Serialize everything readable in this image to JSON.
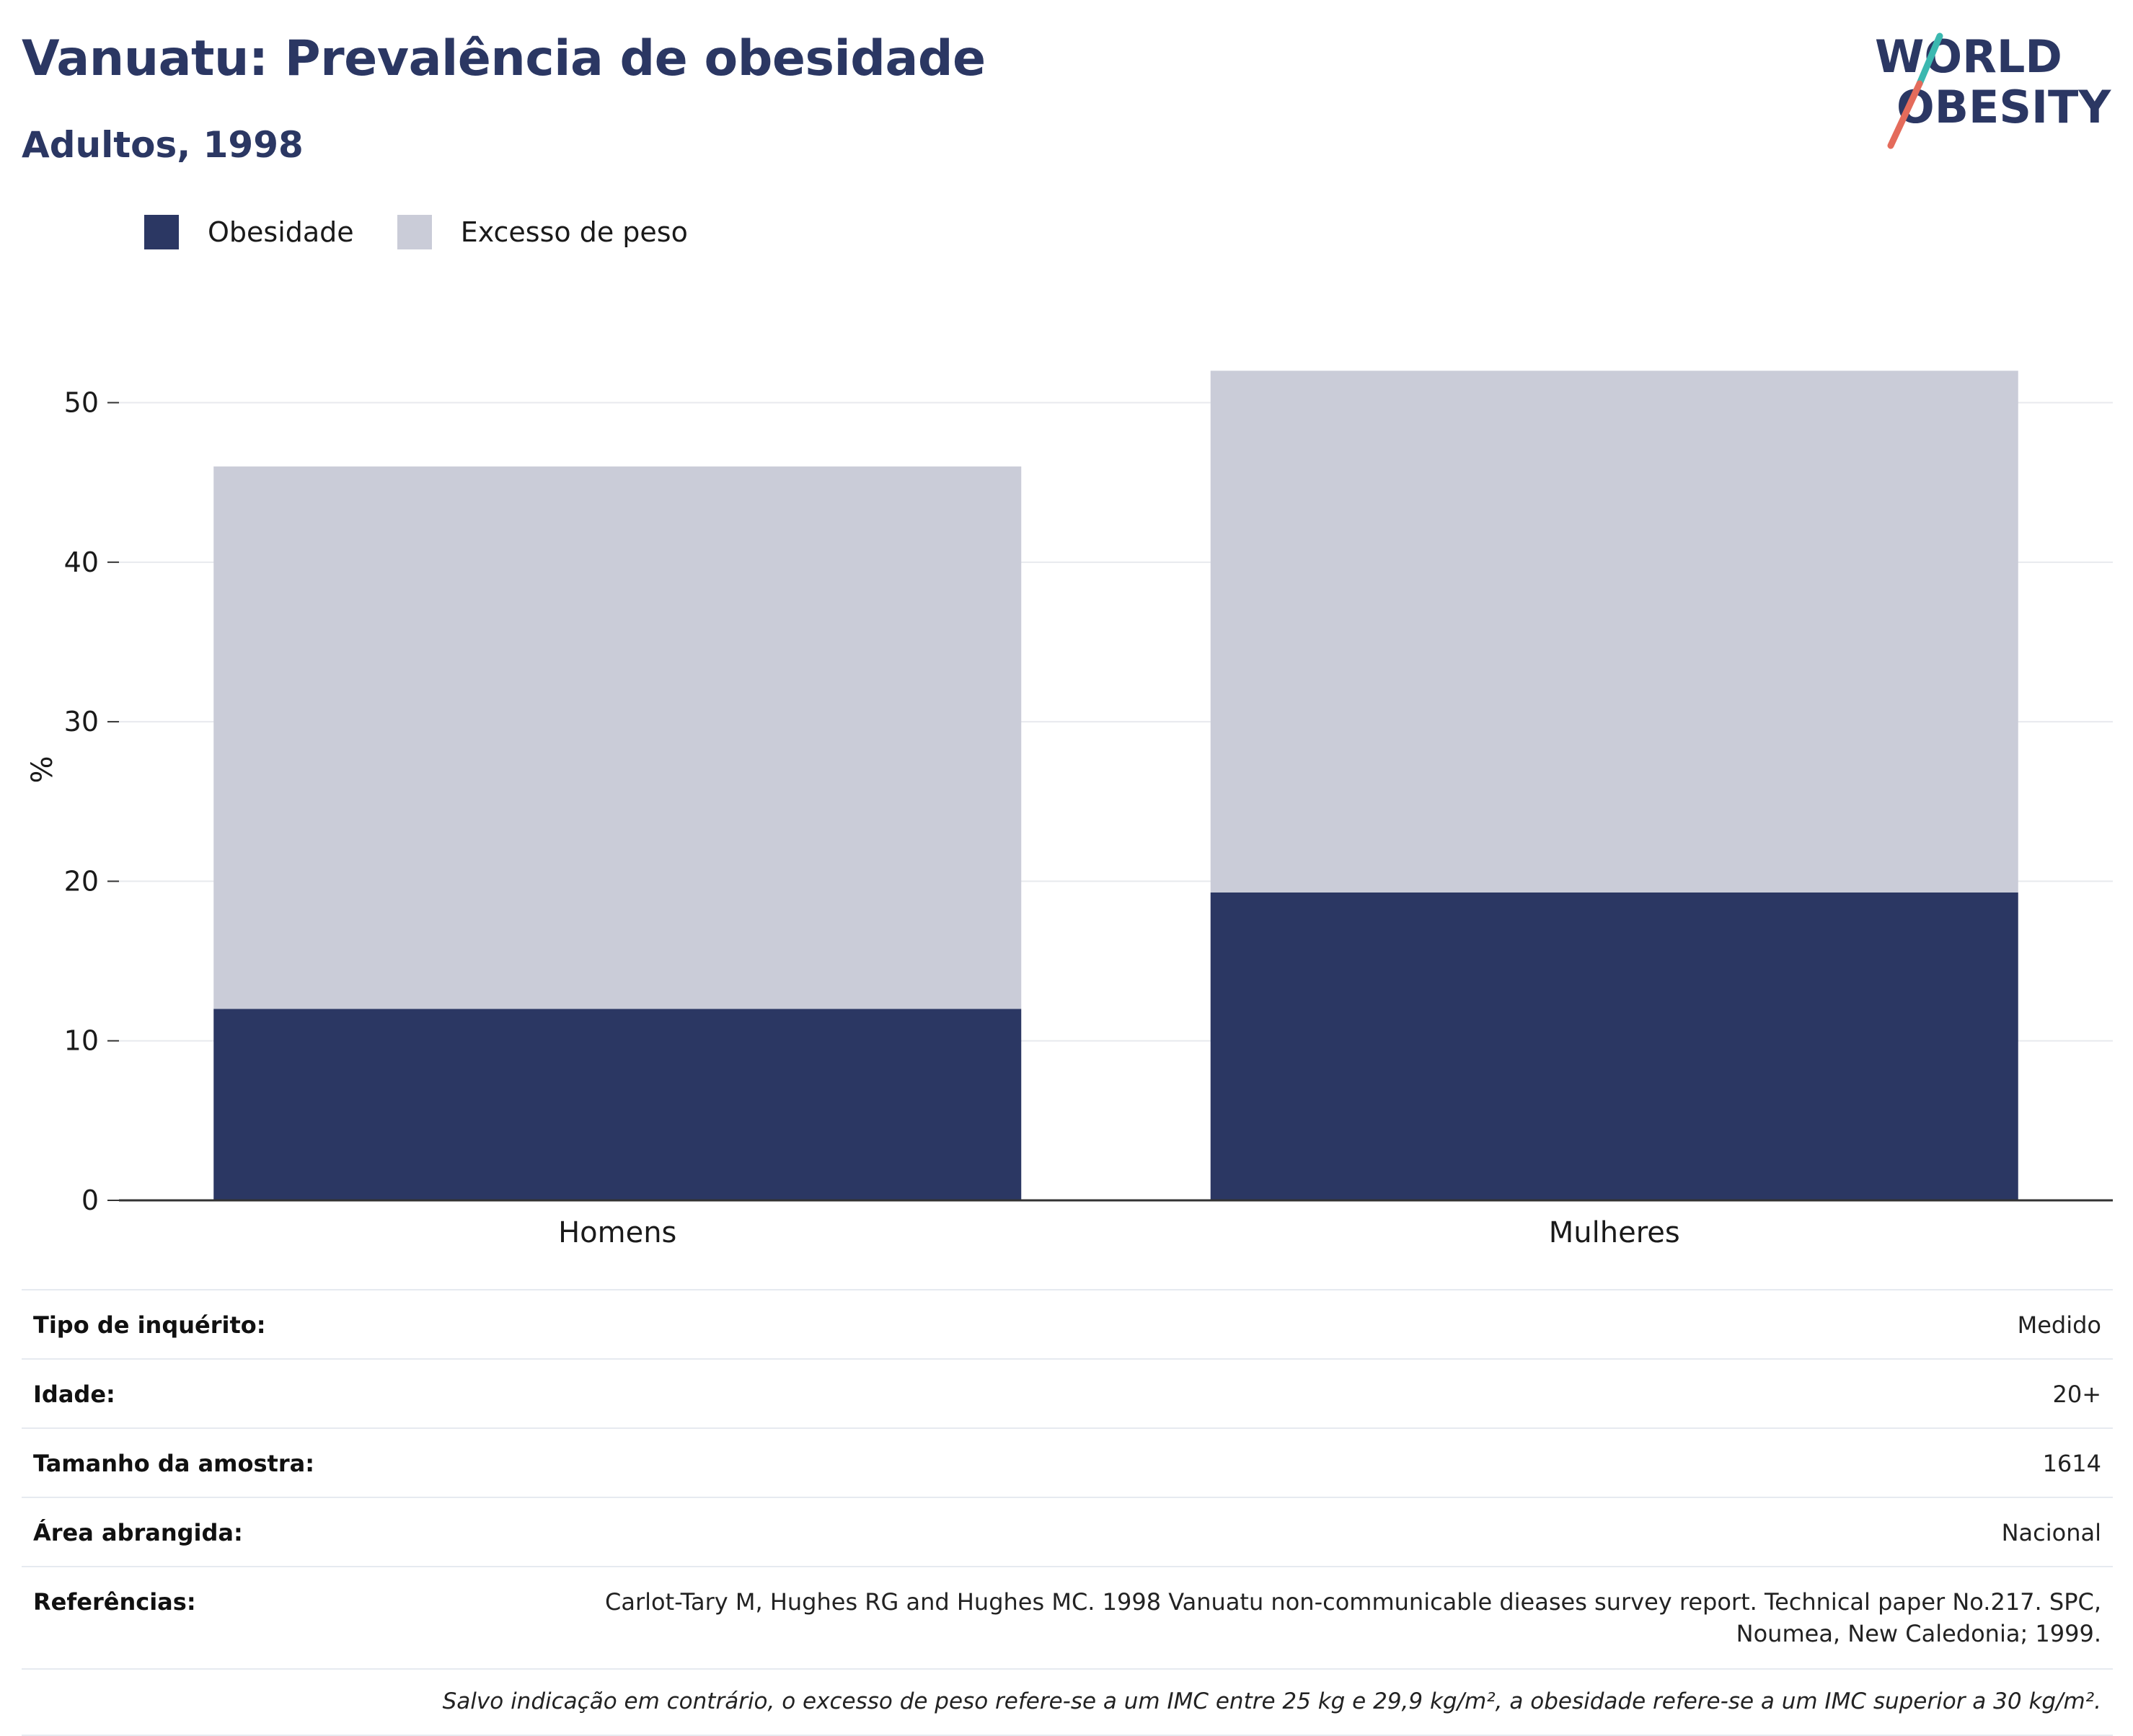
{
  "header": {
    "title": "Vanuatu: Prevalência de obesidade",
    "subtitle": "Adultos, 1998"
  },
  "logo": {
    "line1": "WORLD",
    "line2": "OBESITY"
  },
  "colors": {
    "obesity": "#2b3763",
    "overweight": "#caccd8",
    "title": "#2b3763",
    "logo_teal": "#3bb8b0",
    "logo_coral": "#e46b5b"
  },
  "chart_data": {
    "type": "bar",
    "stacked": true,
    "categories": [
      "Homens",
      "Mulheres"
    ],
    "series": [
      {
        "name": "Obesidade",
        "values": [
          12.0,
          19.3
        ],
        "color": "#2b3763"
      },
      {
        "name": "Excesso de peso",
        "values": [
          34.0,
          32.7
        ],
        "color": "#caccd8"
      }
    ],
    "ylabel": "%",
    "ylim": [
      0,
      54
    ],
    "yticks": [
      0,
      10,
      20,
      30,
      40,
      50
    ],
    "grid": true,
    "legend": "top-left"
  },
  "meta": {
    "rows": [
      {
        "label": "Tipo de inquérito:",
        "value": "Medido"
      },
      {
        "label": "Idade:",
        "value": "20+"
      },
      {
        "label": "Tamanho da amostra:",
        "value": "1614"
      },
      {
        "label": "Área abrangida:",
        "value": "Nacional"
      }
    ],
    "references_label": "Referências:",
    "references_value": "Carlot-Tary M, Hughes RG and Hughes MC. 1998 Vanuatu non-communicable dieases survey report. Technical paper No.217. SPC, Noumea, New Caledonia; 1999.",
    "note": "Salvo indicação em contrário, o excesso de peso refere-se a um IMC entre 25 kg e 29,9 kg/m², a obesidade refere-se a um IMC superior a 30 kg/m²."
  }
}
